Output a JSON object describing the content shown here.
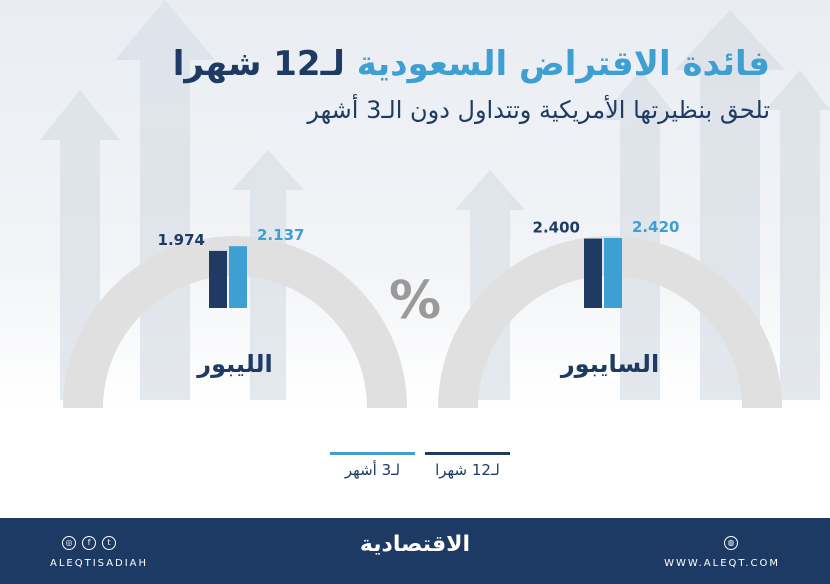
{
  "header": {
    "title_part1": "فائدة الاقتراض السعودية",
    "title_part2": " لـ12 شهرا",
    "subtitle": "تلحق بنظيرتها الأمريكية وتتداول دون الـ3 أشهر"
  },
  "colors": {
    "dark": "#1f3b64",
    "light": "#3ea0d2",
    "gauge": "#e0e0e0",
    "footer": "#1c3a63"
  },
  "chart_data": {
    "type": "bar",
    "categories": [
      "الليبور",
      "السايبور"
    ],
    "series": [
      {
        "name": "لـ12 شهرا",
        "values": [
          1.974,
          2.4
        ]
      },
      {
        "name": "لـ3 أشهر",
        "values": [
          2.137,
          2.42
        ]
      }
    ],
    "value_labels": [
      [
        "1.974",
        "2.400"
      ],
      [
        "2.137",
        "2.420"
      ]
    ],
    "unit": "%"
  },
  "legend": {
    "item_12": "لـ12 شهرا",
    "item_3": "لـ3 أشهر"
  },
  "footer": {
    "brand": "الاقتصادية",
    "handle": "ALEQTISADIAH",
    "website": "WWW.ALEQT.COM",
    "social_icons": [
      "instagram-icon",
      "facebook-icon",
      "twitter-icon"
    ],
    "web_icon": "globe-icon"
  }
}
